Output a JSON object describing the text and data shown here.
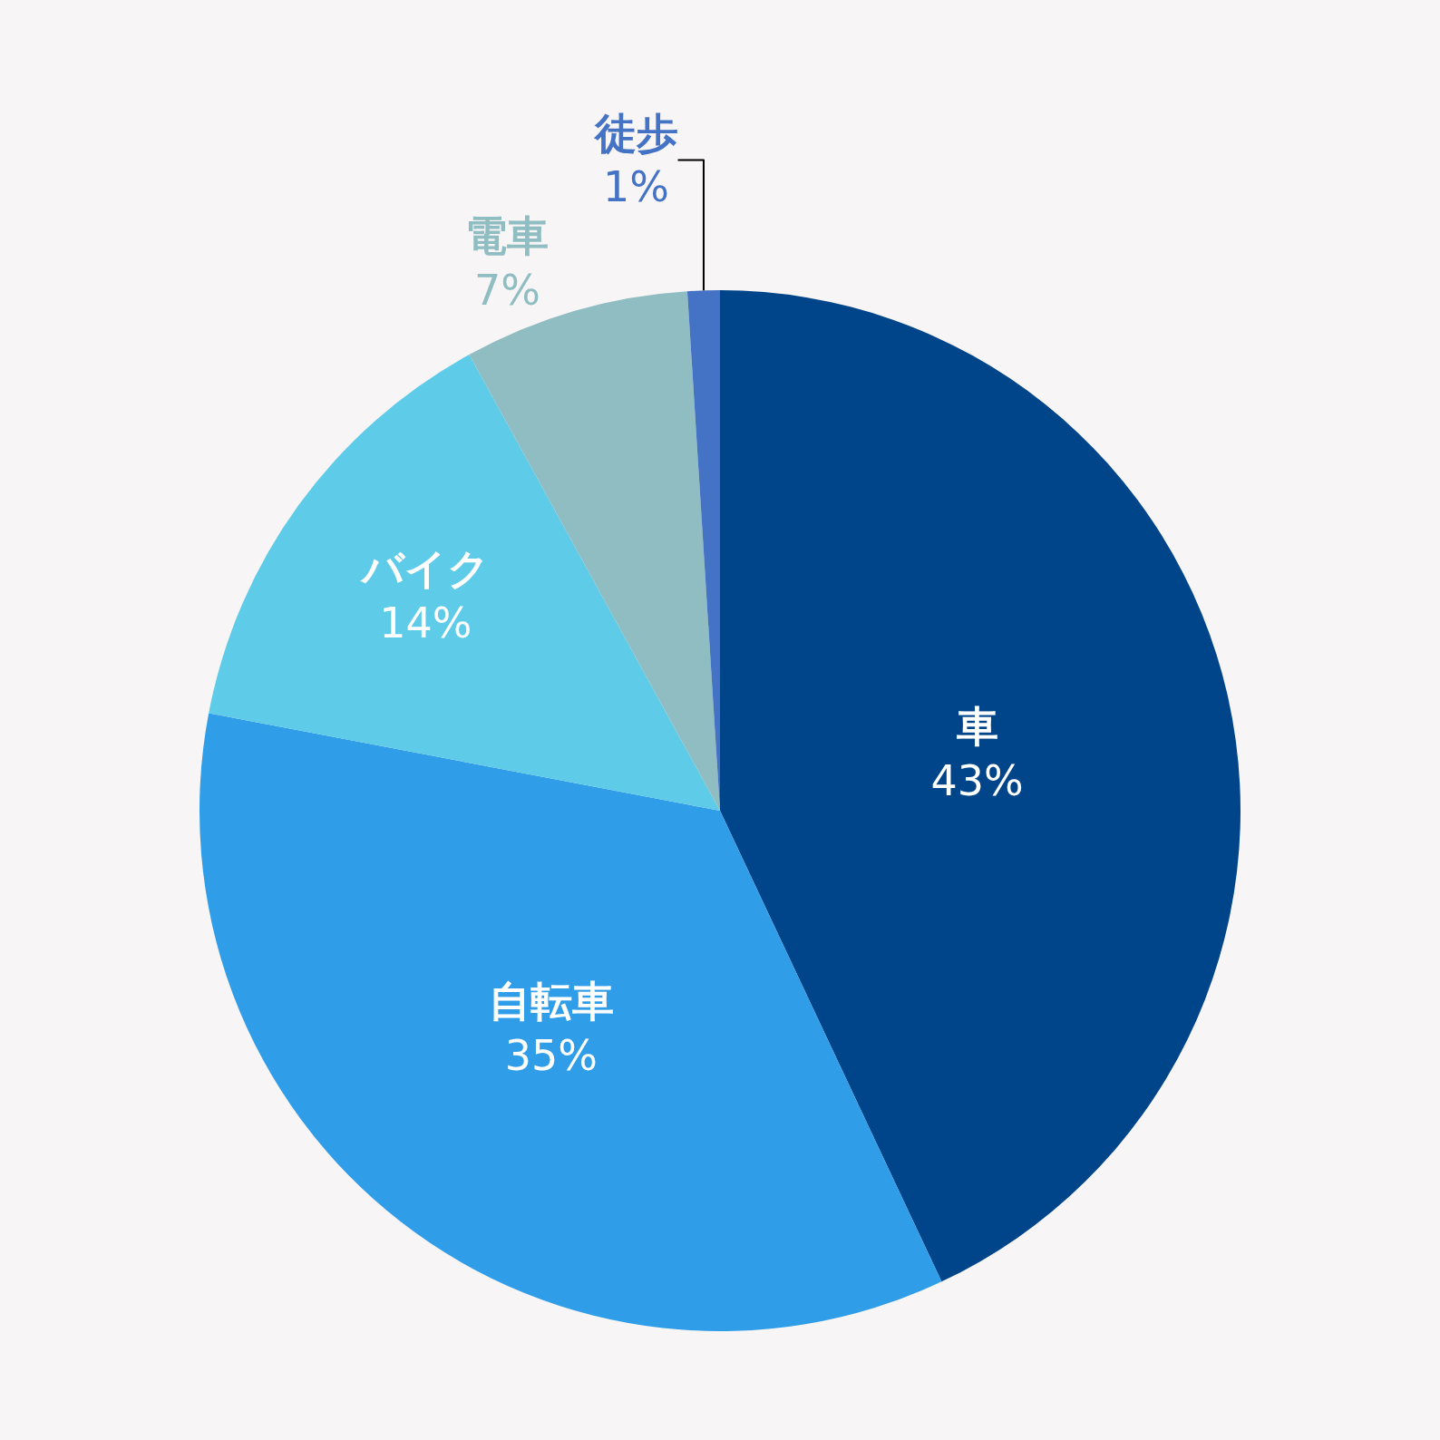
{
  "chart_data": {
    "type": "pie",
    "categories": [
      "車",
      "自転車",
      "バイク",
      "電車",
      "徒歩"
    ],
    "values": [
      43,
      35,
      14,
      7,
      1
    ],
    "value_labels": [
      "43%",
      "35%",
      "14%",
      "7%",
      "1%"
    ],
    "colors": [
      "#00448a",
      "#2f9de8",
      "#5ecbe8",
      "#8fbdc2",
      "#4472c4"
    ],
    "legend": false
  }
}
